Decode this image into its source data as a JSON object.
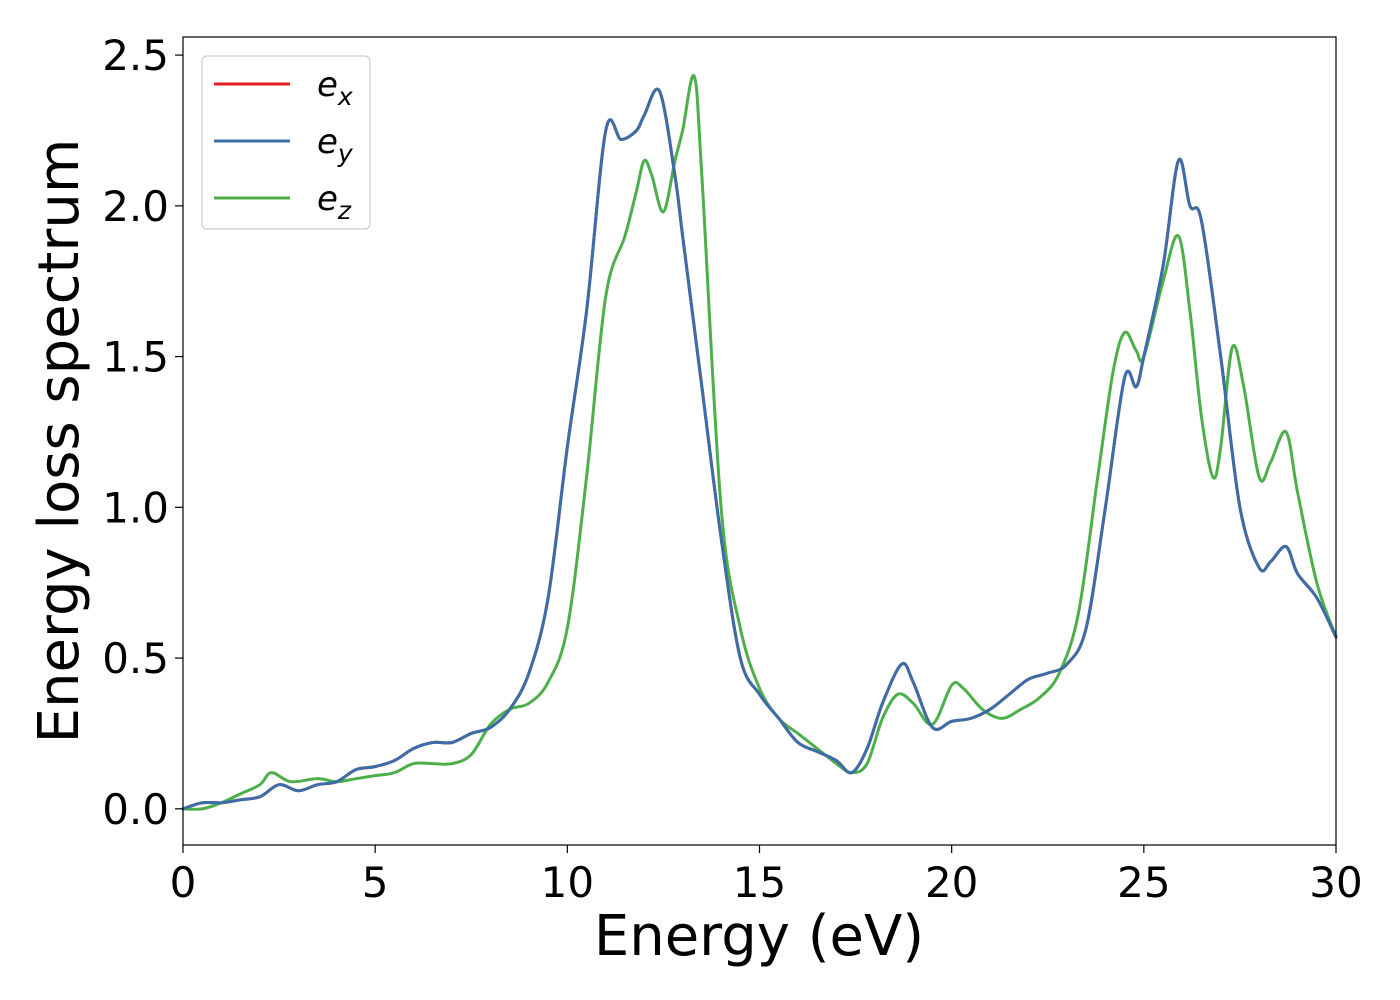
{
  "chart_data": {
    "type": "line",
    "xlabel": "Energy (eV)",
    "ylabel": "Energy loss spectrum",
    "xlim": [
      0,
      30
    ],
    "ylim": [
      -0.12,
      2.56
    ],
    "xticks": [
      "0",
      "5",
      "10",
      "15",
      "20",
      "25",
      "30"
    ],
    "yticks": [
      "0.0",
      "0.5",
      "1.0",
      "1.5",
      "2.0",
      "2.5"
    ],
    "grid": false,
    "legend_position": "top-left",
    "series": [
      {
        "name": "e",
        "subscript": "x",
        "color": "#e41a1c",
        "x": [
          0,
          0.5,
          1,
          1.5,
          2,
          2.5,
          3,
          3.5,
          4,
          4.5,
          5,
          5.5,
          6,
          6.5,
          7,
          7.5,
          8,
          8.5,
          9,
          9.5,
          10,
          10.5,
          11,
          11.4,
          11.8,
          12,
          12.4,
          12.8,
          13,
          13.5,
          14,
          14.5,
          15,
          15.5,
          16,
          16.5,
          17,
          17.4,
          17.8,
          18.2,
          18.7,
          19,
          19.5,
          20,
          20.5,
          21,
          21.5,
          22,
          22.5,
          23,
          23.5,
          24,
          24.5,
          24.8,
          25,
          25.5,
          25.9,
          26.2,
          26.5,
          27,
          27.5,
          28,
          28.3,
          28.7,
          29,
          29.5,
          30
        ],
        "y": [
          0,
          0.02,
          0.02,
          0.03,
          0.04,
          0.08,
          0.06,
          0.08,
          0.09,
          0.13,
          0.14,
          0.16,
          0.2,
          0.22,
          0.22,
          0.25,
          0.27,
          0.33,
          0.45,
          0.7,
          1.2,
          1.65,
          2.25,
          2.22,
          2.25,
          2.3,
          2.38,
          2.1,
          1.9,
          1.4,
          0.9,
          0.5,
          0.38,
          0.3,
          0.22,
          0.19,
          0.16,
          0.12,
          0.2,
          0.35,
          0.48,
          0.42,
          0.27,
          0.29,
          0.3,
          0.33,
          0.38,
          0.43,
          0.45,
          0.48,
          0.6,
          1.0,
          1.43,
          1.4,
          1.5,
          1.8,
          2.15,
          2.0,
          1.95,
          1.5,
          1.0,
          0.8,
          0.82,
          0.87,
          0.78,
          0.7,
          0.57
        ]
      },
      {
        "name": "e",
        "subscript": "y",
        "color": "#3a6ea8",
        "x": [
          0,
          0.5,
          1,
          1.5,
          2,
          2.5,
          3,
          3.5,
          4,
          4.5,
          5,
          5.5,
          6,
          6.5,
          7,
          7.5,
          8,
          8.5,
          9,
          9.5,
          10,
          10.5,
          11,
          11.4,
          11.8,
          12,
          12.4,
          12.8,
          13,
          13.5,
          14,
          14.5,
          15,
          15.5,
          16,
          16.5,
          17,
          17.4,
          17.8,
          18.2,
          18.7,
          19,
          19.5,
          20,
          20.5,
          21,
          21.5,
          22,
          22.5,
          23,
          23.5,
          24,
          24.5,
          24.8,
          25,
          25.5,
          25.9,
          26.2,
          26.5,
          27,
          27.5,
          28,
          28.3,
          28.7,
          29,
          29.5,
          30
        ],
        "y": [
          0,
          0.02,
          0.02,
          0.03,
          0.04,
          0.08,
          0.06,
          0.08,
          0.09,
          0.13,
          0.14,
          0.16,
          0.2,
          0.22,
          0.22,
          0.25,
          0.27,
          0.33,
          0.45,
          0.7,
          1.2,
          1.65,
          2.25,
          2.22,
          2.25,
          2.3,
          2.38,
          2.1,
          1.9,
          1.4,
          0.9,
          0.5,
          0.38,
          0.3,
          0.22,
          0.19,
          0.16,
          0.12,
          0.2,
          0.35,
          0.48,
          0.42,
          0.27,
          0.29,
          0.3,
          0.33,
          0.38,
          0.43,
          0.45,
          0.48,
          0.6,
          1.0,
          1.43,
          1.4,
          1.5,
          1.8,
          2.15,
          2.0,
          1.95,
          1.5,
          1.0,
          0.8,
          0.82,
          0.87,
          0.78,
          0.7,
          0.57
        ]
      },
      {
        "name": "e",
        "subscript": "z",
        "color": "#4daf4a",
        "x": [
          0,
          0.5,
          1,
          1.5,
          2,
          2.3,
          2.8,
          3.5,
          4,
          4.5,
          5,
          5.5,
          6,
          6.5,
          7,
          7.5,
          8,
          8.5,
          9,
          9.5,
          10,
          10.5,
          11,
          11.5,
          11.8,
          12,
          12.2,
          12.5,
          12.8,
          13,
          13.3,
          13.5,
          14,
          14.5,
          15,
          15.5,
          16,
          16.5,
          17,
          17.4,
          17.8,
          18.2,
          18.6,
          19,
          19.5,
          20,
          20.3,
          20.8,
          21.3,
          21.8,
          22.3,
          22.8,
          23.3,
          23.8,
          24.2,
          24.5,
          24.8,
          25,
          25.5,
          25.9,
          26.2,
          26.5,
          26.8,
          27,
          27.3,
          27.6,
          28,
          28.3,
          28.7,
          29,
          29.5,
          30
        ],
        "y": [
          0,
          0,
          0.02,
          0.05,
          0.08,
          0.12,
          0.09,
          0.1,
          0.09,
          0.1,
          0.11,
          0.12,
          0.15,
          0.15,
          0.15,
          0.18,
          0.28,
          0.33,
          0.35,
          0.42,
          0.6,
          1.1,
          1.7,
          1.9,
          2.05,
          2.15,
          2.1,
          1.98,
          2.15,
          2.25,
          2.43,
          2.1,
          1.0,
          0.6,
          0.4,
          0.3,
          0.25,
          0.2,
          0.15,
          0.12,
          0.15,
          0.3,
          0.38,
          0.35,
          0.28,
          0.41,
          0.4,
          0.33,
          0.3,
          0.33,
          0.37,
          0.45,
          0.65,
          1.1,
          1.45,
          1.58,
          1.52,
          1.5,
          1.75,
          1.9,
          1.65,
          1.3,
          1.1,
          1.2,
          1.53,
          1.4,
          1.1,
          1.15,
          1.25,
          1.05,
          0.75,
          0.57
        ]
      }
    ]
  }
}
